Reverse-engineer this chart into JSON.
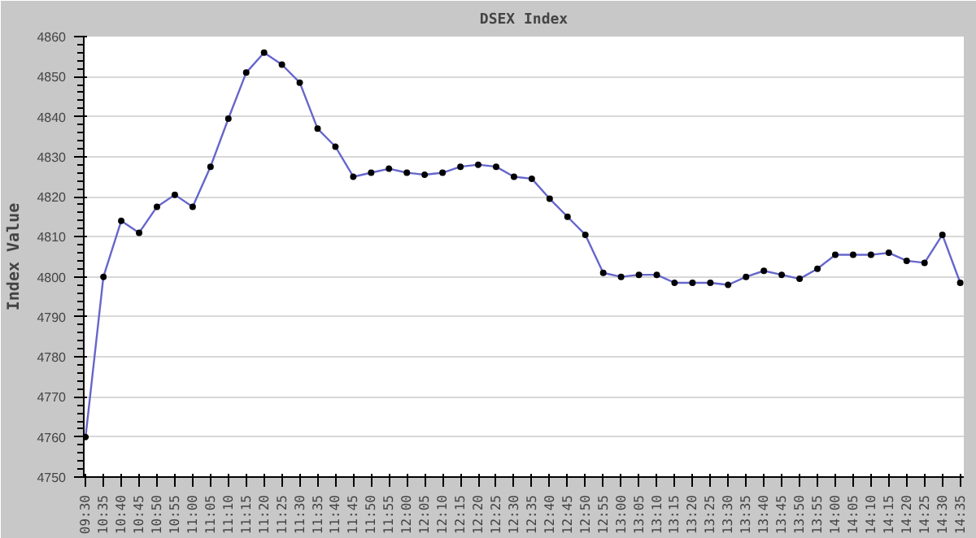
{
  "chart_data": {
    "type": "line",
    "title": "DSEX Index",
    "ylabel": "Index Value",
    "categories": [
      "09:30",
      "10:35",
      "10:40",
      "10:45",
      "10:50",
      "10:55",
      "11:00",
      "11:05",
      "11:10",
      "11:15",
      "11:20",
      "11:25",
      "11:30",
      "11:35",
      "11:40",
      "11:45",
      "11:50",
      "11:55",
      "12:00",
      "12:05",
      "12:10",
      "12:15",
      "12:20",
      "12:25",
      "12:30",
      "12:35",
      "12:40",
      "12:45",
      "12:50",
      "12:55",
      "13:00",
      "13:05",
      "13:10",
      "13:15",
      "13:20",
      "13:25",
      "13:30",
      "13:35",
      "13:40",
      "13:45",
      "13:50",
      "13:55",
      "14:00",
      "14:05",
      "14:10",
      "14:15",
      "14:20",
      "14:25",
      "14:30",
      "14:35"
    ],
    "series": [
      {
        "color": "#6666cc",
        "values": [
          4760,
          4800,
          4814,
          4811,
          4817.5,
          4820.5,
          4817.5,
          4827.5,
          4839.5,
          4851,
          4856,
          4853,
          4848.5,
          4837,
          4832.5,
          4825,
          4826,
          4827,
          4826,
          4825.5,
          4826,
          4827.5,
          4828,
          4827.5,
          4825,
          4824.5,
          4819.5,
          4815,
          4810.5,
          4801,
          4800,
          4800.5,
          4800.5,
          4798.5,
          4798.5,
          4798.5,
          4798,
          4800,
          4801.5,
          4800.5,
          4799.5,
          4802,
          4805.5,
          4805.5,
          4805.5,
          4806,
          4804,
          4803.5,
          4810.5,
          4798.5
        ]
      }
    ],
    "ylim": [
      4750,
      4860
    ],
    "yticks": [
      4750,
      4760,
      4770,
      4780,
      4790,
      4800,
      4810,
      4820,
      4830,
      4840,
      4850,
      4860
    ],
    "grid": "y",
    "marker": "circle",
    "line_style": "solid"
  }
}
